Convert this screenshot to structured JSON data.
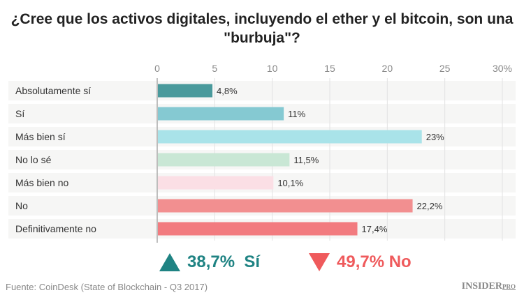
{
  "chart_data": {
    "type": "bar",
    "orientation": "horizontal",
    "title": "¿Cree que los activos digitales, incluyendo el ether y el bitcoin, son una \"burbuja\"?",
    "categories": [
      "Absolutamente sí",
      "Sí",
      "Más bien sí",
      "No lo sé",
      "Más bien no",
      "No",
      "Definitivamente no"
    ],
    "values": [
      4.8,
      11,
      23,
      11.5,
      10.1,
      22.2,
      17.4
    ],
    "value_labels": [
      "4,8%",
      "11%",
      "23%",
      "11,5%",
      "10,1%",
      "22,2%",
      "17,4%"
    ],
    "colors": [
      "#4a9a9c",
      "#85c9d2",
      "#a9e3e9",
      "#c9e7d5",
      "#fbdfe5",
      "#f28f90",
      "#f27b7f"
    ],
    "xlim": [
      0,
      30
    ],
    "ticks": [
      "0",
      "5",
      "10",
      "15",
      "20",
      "25",
      "30%"
    ],
    "tick_values": [
      0,
      5,
      10,
      15,
      20,
      25,
      30
    ],
    "grid": true,
    "xlabel": "",
    "ylabel": ""
  },
  "summary": {
    "yes": {
      "text": "38,7%  Sí",
      "color": "#1f8383",
      "icon": "triangle-up-icon"
    },
    "no": {
      "text": "49,7% No",
      "color": "#ef5a5c",
      "icon": "triangle-down-icon"
    }
  },
  "source": "Fuente: CoinDesk (State of Blockchain - Q3 2017)",
  "logo": {
    "main": "INSIDER",
    "sub": "PRO"
  }
}
